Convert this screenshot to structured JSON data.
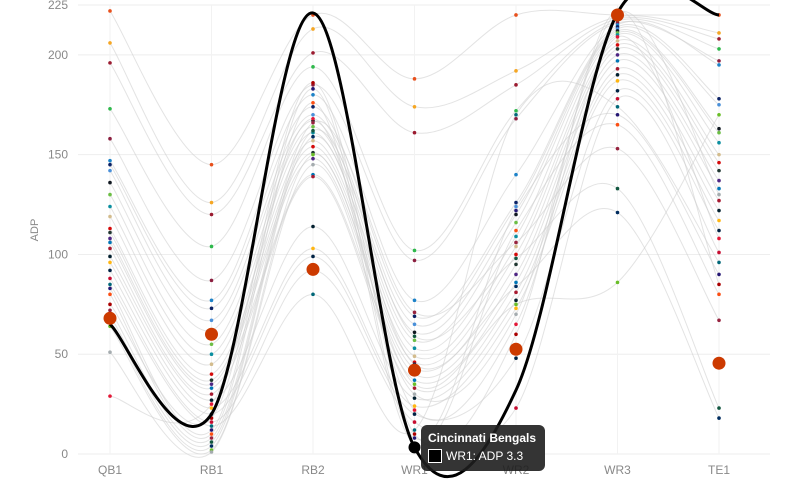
{
  "chart_data": {
    "type": "line",
    "title": "",
    "xlabel": "",
    "ylabel": "ADP",
    "categories": [
      "QB1",
      "RB1",
      "RB2",
      "WR1",
      "WR2",
      "WR3",
      "TE1"
    ],
    "yticks": [
      0,
      50,
      100,
      150,
      200,
      225
    ],
    "ylim": [
      0,
      225
    ],
    "grid": true,
    "values_by_axis": [
      [
        222,
        206,
        196,
        173,
        158,
        147,
        145,
        142,
        136,
        130,
        124,
        119,
        113,
        111,
        108,
        106,
        103,
        99,
        96,
        92,
        88,
        85,
        83,
        80,
        72,
        69,
        66,
        64,
        51,
        29,
        75
      ],
      [
        145,
        126,
        120,
        104,
        87,
        77,
        73,
        67,
        62,
        55,
        50,
        45,
        40,
        37,
        35,
        33,
        30,
        27,
        23,
        20,
        16,
        14,
        12,
        10,
        8,
        6,
        4,
        2,
        1,
        25,
        18
      ],
      [
        220,
        213,
        201,
        194,
        185,
        180,
        174,
        170,
        167,
        164,
        161,
        157,
        154,
        151,
        148,
        140,
        139,
        114,
        103,
        99,
        92,
        80,
        183,
        176,
        166,
        162,
        159,
        150,
        145,
        168,
        186
      ],
      [
        188,
        174,
        161,
        102,
        97,
        77,
        69,
        65,
        61,
        57,
        53,
        49,
        46,
        43,
        40,
        37,
        33,
        28,
        24,
        20,
        16,
        12,
        8,
        5,
        71,
        59,
        45,
        35,
        30,
        22,
        10
      ],
      [
        220,
        192,
        185,
        172,
        168,
        140,
        126,
        124,
        120,
        116,
        109,
        104,
        100,
        95,
        90,
        86,
        81,
        77,
        73,
        48,
        23,
        170,
        122,
        112,
        106,
        98,
        84,
        75,
        70,
        65,
        60
      ],
      [
        220,
        219,
        218,
        217,
        216,
        215,
        214,
        213,
        212,
        211,
        210,
        207,
        205,
        203,
        200,
        197,
        193,
        190,
        187,
        182,
        178,
        174,
        170,
        165,
        153,
        133,
        121,
        86,
        221,
        209,
        222
      ],
      [
        220,
        211,
        208,
        203,
        197,
        195,
        178,
        175,
        163,
        161,
        156,
        150,
        146,
        142,
        137,
        133,
        127,
        122,
        117,
        112,
        101,
        96,
        90,
        80,
        67,
        23,
        18,
        170,
        130,
        108,
        85
      ]
    ],
    "team_colors": [
      "#e8501c",
      "#f5a623",
      "#9b1b30",
      "#2eb84b",
      "#8b1e3f",
      "#1d82c8",
      "#0b2265",
      "#4a90d9",
      "#101820",
      "#6cbe45",
      "#0b8fa0",
      "#d3bc8d",
      "#d50a0a",
      "#203731",
      "#4f2683",
      "#0076b6",
      "#a71930",
      "#03202f",
      "#ffb612",
      "#002244",
      "#c60c30",
      "#006778",
      "#241773",
      "#fb4f14",
      "#97233f",
      "#125740",
      "#002c5f",
      "#69be28",
      "#a5acaf",
      "#e31837",
      "#aa0000"
    ],
    "highlighted_series": {
      "name": "Cincinnati Bengals",
      "values": [
        65,
        20,
        221,
        3.3,
        32,
        221,
        220
      ],
      "color": "#000000"
    },
    "emphasized_points": {
      "values": [
        68,
        60,
        92.5,
        42,
        52.5,
        220,
        45.5
      ],
      "color": "#cc3a00"
    },
    "tooltip": {
      "title": "Cincinnati Bengals",
      "text": "WR1: ADP 3.3"
    }
  }
}
